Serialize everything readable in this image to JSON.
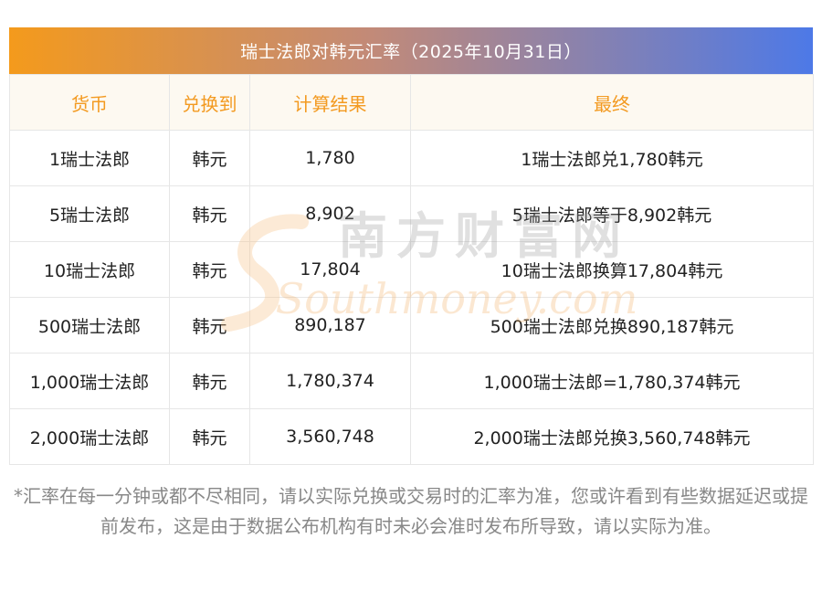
{
  "title": "瑞士法郎对韩元汇率（2025年10月31日）",
  "table": {
    "headers": [
      "货币",
      "兑换到",
      "计算结果",
      "最终"
    ],
    "rows": [
      [
        "1瑞士法郎",
        "韩元",
        "1,780",
        "1瑞士法郎兑1,780韩元"
      ],
      [
        "5瑞士法郎",
        "韩元",
        "8,902",
        "5瑞士法郎等于8,902韩元"
      ],
      [
        "10瑞士法郎",
        "韩元",
        "17,804",
        "10瑞士法郎换算17,804韩元"
      ],
      [
        "500瑞士法郎",
        "韩元",
        "890,187",
        "500瑞士法郎兑换890,187韩元"
      ],
      [
        "1,000瑞士法郎",
        "韩元",
        "1,780,374",
        "1,000瑞士法郎=1,780,374韩元"
      ],
      [
        "2,000瑞士法郎",
        "韩元",
        "3,560,748",
        "2,000瑞士法郎兑换3,560,748韩元"
      ]
    ]
  },
  "watermark": {
    "cn": "南方财富网",
    "en": "Southmoney.com"
  },
  "footnote": "*汇率在每一分钟或都不尽相同，请以实际兑换或交易时的汇率为准，您或许看到有些数据延迟或提前发布，这是由于数据公布机构有时未必会准时发布所导致，请以实际为准。",
  "colors": {
    "header_text": "#f39a21",
    "header_bg": "#fdf9f1",
    "title_gradient_start": "#f49a1c",
    "title_gradient_end": "#4d79e7",
    "footnote_text": "#888888"
  }
}
